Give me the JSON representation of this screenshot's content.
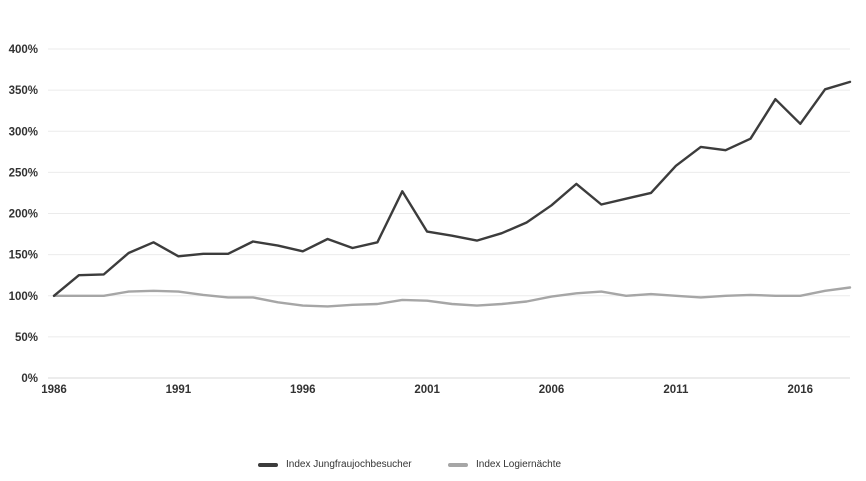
{
  "chart_data": {
    "type": "line",
    "title": "",
    "xlabel": "",
    "ylabel": "",
    "x": [
      1986,
      1987,
      1988,
      1989,
      1990,
      1991,
      1992,
      1993,
      1994,
      1995,
      1996,
      1997,
      1998,
      1999,
      2000,
      2001,
      2002,
      2003,
      2004,
      2005,
      2006,
      2007,
      2008,
      2009,
      2010,
      2011,
      2012,
      2013,
      2014,
      2015,
      2016,
      2017,
      2018
    ],
    "xlim": [
      1986,
      2018
    ],
    "x_ticks": [
      1986,
      1991,
      1996,
      2001,
      2006,
      2011,
      2016
    ],
    "x_tick_labels": [
      "1986",
      "1991",
      "1996",
      "2001",
      "2006",
      "2011",
      "2016"
    ],
    "ylim": [
      0,
      400
    ],
    "y_ticks": [
      0,
      50,
      100,
      150,
      200,
      250,
      300,
      350,
      400
    ],
    "y_tick_labels": [
      "0%",
      "50%",
      "100%",
      "150%",
      "200%",
      "250%",
      "300%",
      "350%",
      "400%"
    ],
    "grid": "horizontal",
    "legend_position": "bottom",
    "series": [
      {
        "name": "Index Jungfraujochbesucher",
        "color": "#3c3c3c",
        "values": [
          100,
          125,
          126,
          152,
          165,
          148,
          151,
          151,
          166,
          161,
          154,
          169,
          158,
          165,
          227,
          178,
          173,
          167,
          176,
          189,
          210,
          236,
          211,
          218,
          225,
          258,
          281,
          277,
          291,
          339,
          309,
          351,
          360
        ]
      },
      {
        "name": "Index Logiernächte",
        "color": "#a6a6a6",
        "values": [
          100,
          100,
          100,
          105,
          106,
          105,
          101,
          98,
          98,
          92,
          88,
          87,
          89,
          90,
          95,
          94,
          90,
          88,
          90,
          93,
          99,
          103,
          105,
          100,
          102,
          100,
          98,
          100,
          101,
          100,
          100,
          106,
          110
        ]
      }
    ]
  }
}
